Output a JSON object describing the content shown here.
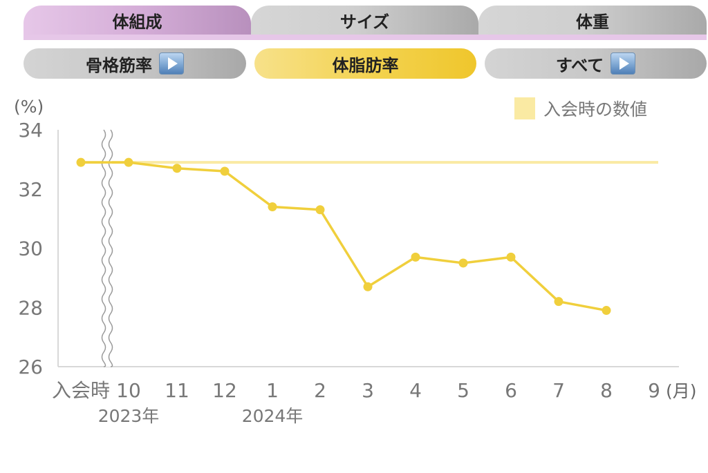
{
  "tabs": [
    {
      "label": "体組成",
      "active": true
    },
    {
      "label": "サイズ",
      "active": false
    },
    {
      "label": "体重",
      "active": false
    }
  ],
  "subtabs": [
    {
      "label": "骨格筋率",
      "active": false,
      "has_arrow": true
    },
    {
      "label": "体脂肪率",
      "active": true,
      "has_arrow": false
    },
    {
      "label": "すべて",
      "active": false,
      "has_arrow": true
    }
  ],
  "legend": {
    "label": "入会時の数値",
    "color": "#faeaa3"
  },
  "colors": {
    "series": "#f0cf3c",
    "baseline": "#faeaa3",
    "axis": "#d8d8d8",
    "tick": "#777777"
  },
  "chart_data": {
    "type": "line",
    "ylabel": "(%)",
    "xlabel": "(月)",
    "ylim": [
      26,
      34
    ],
    "yticks": [
      34,
      32,
      30,
      28,
      26
    ],
    "categories": [
      "入会時",
      "10",
      "11",
      "12",
      "1",
      "2",
      "3",
      "4",
      "5",
      "6",
      "7",
      "8",
      "9"
    ],
    "year_labels": [
      {
        "text": "2023年",
        "category": "10"
      },
      {
        "text": "2024年",
        "category": "1"
      }
    ],
    "axis_break_after": "入会時",
    "baseline": {
      "value": 32.9
    },
    "series": [
      {
        "values": [
          32.9,
          32.9,
          32.7,
          32.6,
          31.4,
          31.3,
          28.7,
          29.7,
          29.5,
          29.7,
          28.2,
          27.9,
          null
        ]
      }
    ]
  }
}
